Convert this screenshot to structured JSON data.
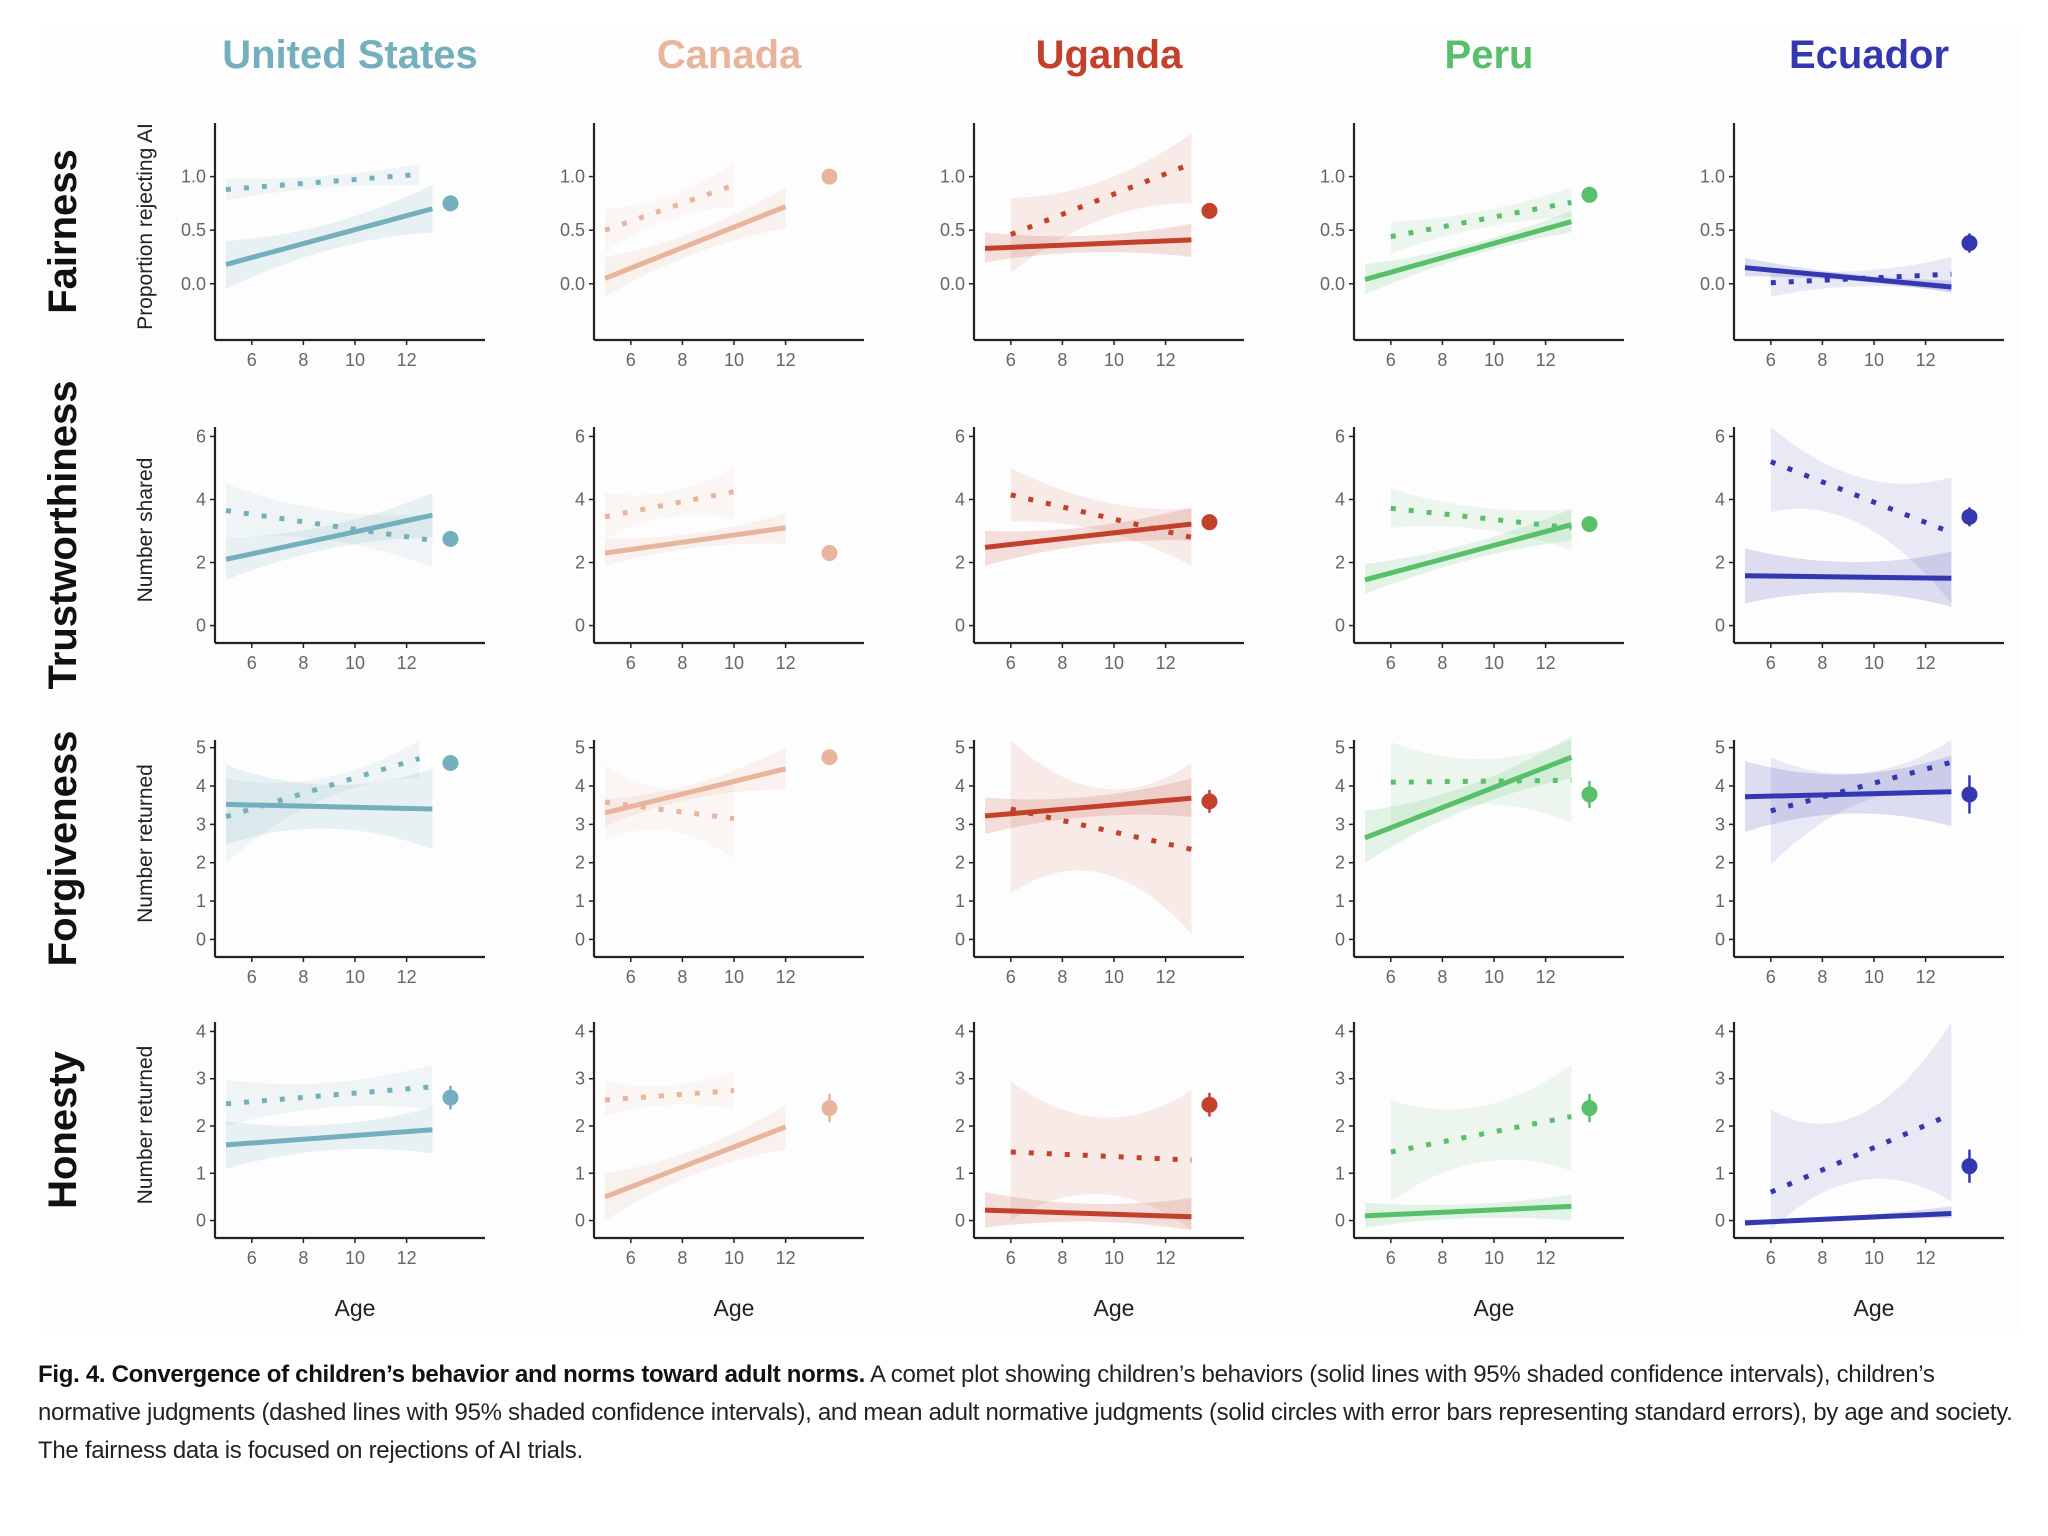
{
  "chart_data": {
    "type": "line",
    "title": "Fig. 4. Convergence of children's behavior and norms toward adult norms.",
    "xlabel": "Age",
    "x_ticks": [
      6,
      8,
      10,
      12
    ],
    "columns": [
      {
        "name": "United States",
        "color": "#74afbd"
      },
      {
        "name": "Canada",
        "color": "#e8b49b"
      },
      {
        "name": "Uganda",
        "color": "#c3402a"
      },
      {
        "name": "Peru",
        "color": "#58bf6a"
      },
      {
        "name": "Ecuador",
        "color": "#3338b0"
      }
    ],
    "rows": [
      {
        "name": "Fairness",
        "ylabel": "Proportion rejecting AI",
        "ylim": [
          -0.45,
          1.5
        ],
        "y_ticks": [
          0.0,
          0.5,
          1.0
        ],
        "y_tick_labels": [
          "0.0",
          "0.5",
          "1.0"
        ],
        "panels": [
          {
            "behavior": {
              "x": [
                5,
                13
              ],
              "y": [
                0.18,
                0.7
              ],
              "ci_lo": [
                -0.05,
                0.48
              ],
              "ci_hi": [
                0.4,
                0.92
              ]
            },
            "norm": {
              "x": [
                5,
                12.5
              ],
              "y": [
                0.88,
                1.02
              ],
              "ci_lo": [
                0.78,
                0.92
              ],
              "ci_hi": [
                0.98,
                1.12
              ]
            },
            "adult": {
              "mean": 0.75,
              "se": 0.05
            }
          },
          {
            "behavior": {
              "x": [
                5,
                12
              ],
              "y": [
                0.05,
                0.72
              ],
              "ci_lo": [
                -0.12,
                0.52
              ],
              "ci_hi": [
                0.25,
                0.9
              ]
            },
            "norm": {
              "x": [
                5,
                10
              ],
              "y": [
                0.5,
                0.92
              ],
              "ci_lo": [
                0.3,
                0.72
              ],
              "ci_hi": [
                0.7,
                1.12
              ]
            },
            "adult": {
              "mean": 1.0,
              "se": 0.0
            }
          },
          {
            "behavior": {
              "x": [
                5,
                13
              ],
              "y": [
                0.33,
                0.41
              ],
              "ci_lo": [
                0.2,
                0.25
              ],
              "ci_hi": [
                0.48,
                0.56
              ]
            },
            "norm": {
              "x": [
                6,
                13
              ],
              "y": [
                0.46,
                1.12
              ],
              "ci_lo": [
                0.1,
                0.75
              ],
              "ci_hi": [
                0.8,
                1.4
              ]
            },
            "adult": {
              "mean": 0.68,
              "se": 0.06
            }
          },
          {
            "behavior": {
              "x": [
                5,
                13
              ],
              "y": [
                0.04,
                0.58
              ],
              "ci_lo": [
                -0.1,
                0.48
              ],
              "ci_hi": [
                0.18,
                0.68
              ]
            },
            "norm": {
              "x": [
                6,
                13
              ],
              "y": [
                0.44,
                0.76
              ],
              "ci_lo": [
                0.28,
                0.62
              ],
              "ci_hi": [
                0.58,
                0.9
              ]
            },
            "adult": {
              "mean": 0.83,
              "se": 0.05
            }
          },
          {
            "behavior": {
              "x": [
                5,
                13
              ],
              "y": [
                0.15,
                -0.03
              ],
              "ci_lo": [
                0.07,
                -0.08
              ],
              "ci_hi": [
                0.24,
                0.03
              ]
            },
            "norm": {
              "x": [
                6,
                13
              ],
              "y": [
                0.01,
                0.09
              ],
              "ci_lo": [
                -0.12,
                -0.08
              ],
              "ci_hi": [
                0.14,
                0.25
              ]
            },
            "adult": {
              "mean": 0.38,
              "se": 0.09
            }
          }
        ]
      },
      {
        "name": "Trustworthiness",
        "ylabel": "Number shared",
        "ylim": [
          -0.3,
          6.3
        ],
        "y_ticks": [
          0,
          2,
          4,
          6
        ],
        "y_tick_labels": [
          "0",
          "2",
          "4",
          "6"
        ],
        "panels": [
          {
            "behavior": {
              "x": [
                5,
                13
              ],
              "y": [
                2.1,
                3.5
              ],
              "ci_lo": [
                1.45,
                2.8
              ],
              "ci_hi": [
                2.8,
                4.2
              ]
            },
            "norm": {
              "x": [
                5,
                13
              ],
              "y": [
                3.65,
                2.7
              ],
              "ci_lo": [
                2.8,
                1.85
              ],
              "ci_hi": [
                4.5,
                3.55
              ]
            },
            "adult": {
              "mean": 2.75,
              "se": 0.08
            }
          },
          {
            "behavior": {
              "x": [
                5,
                12
              ],
              "y": [
                2.3,
                3.1
              ],
              "ci_lo": [
                1.9,
                2.6
              ],
              "ci_hi": [
                2.75,
                3.55
              ]
            },
            "norm": {
              "x": [
                5,
                10
              ],
              "y": [
                3.45,
                4.25
              ],
              "ci_lo": [
                2.75,
                3.4
              ],
              "ci_hi": [
                4.2,
                5.0
              ]
            },
            "adult": {
              "mean": 2.3,
              "se": 0.08
            }
          },
          {
            "behavior": {
              "x": [
                5,
                13
              ],
              "y": [
                2.48,
                3.22
              ],
              "ci_lo": [
                1.9,
                2.7
              ],
              "ci_hi": [
                3.0,
                3.75
              ]
            },
            "norm": {
              "x": [
                6,
                13
              ],
              "y": [
                4.15,
                2.8
              ],
              "ci_lo": [
                3.3,
                1.9
              ],
              "ci_hi": [
                5.0,
                3.7
              ]
            },
            "adult": {
              "mean": 3.28,
              "se": 0.1
            }
          },
          {
            "behavior": {
              "x": [
                5,
                13
              ],
              "y": [
                1.45,
                3.2
              ],
              "ci_lo": [
                1.0,
                2.7
              ],
              "ci_hi": [
                1.95,
                3.7
              ]
            },
            "norm": {
              "x": [
                6,
                13
              ],
              "y": [
                3.72,
                3.1
              ],
              "ci_lo": [
                3.1,
                2.4
              ],
              "ci_hi": [
                4.35,
                3.7
              ]
            },
            "adult": {
              "mean": 3.22,
              "se": 0.08
            }
          },
          {
            "behavior": {
              "x": [
                5,
                13
              ],
              "y": [
                1.58,
                1.5
              ],
              "ci_lo": [
                0.7,
                0.6
              ],
              "ci_hi": [
                2.45,
                2.35
              ]
            },
            "norm": {
              "x": [
                6,
                13
              ],
              "y": [
                5.2,
                2.95
              ],
              "ci_lo": [
                3.6,
                0.7
              ],
              "ci_hi": [
                6.3,
                4.7
              ]
            },
            "adult": {
              "mean": 3.45,
              "se": 0.3
            }
          }
        ]
      },
      {
        "name": "Forgiveness",
        "ylabel": "Number returned",
        "ylim": [
          -0.25,
          5.2
        ],
        "y_ticks": [
          0,
          1,
          2,
          3,
          4,
          5
        ],
        "y_tick_labels": [
          "0",
          "1",
          "2",
          "3",
          "4",
          "5"
        ],
        "panels": [
          {
            "behavior": {
              "x": [
                5,
                13
              ],
              "y": [
                3.52,
                3.4
              ],
              "ci_lo": [
                2.48,
                2.35
              ],
              "ci_hi": [
                4.55,
                4.45
              ]
            },
            "norm": {
              "x": [
                5,
                12.5
              ],
              "y": [
                3.2,
                4.72
              ],
              "ci_lo": [
                2.0,
                4.2
              ],
              "ci_hi": [
                4.2,
                5.2
              ]
            },
            "adult": {
              "mean": 4.6,
              "se": 0.05
            }
          },
          {
            "behavior": {
              "x": [
                5,
                12
              ],
              "y": [
                3.3,
                4.45
              ],
              "ci_lo": [
                2.95,
                3.9
              ],
              "ci_hi": [
                3.65,
                5.0
              ]
            },
            "norm": {
              "x": [
                5,
                10
              ],
              "y": [
                3.58,
                3.15
              ],
              "ci_lo": [
                2.6,
                2.1
              ],
              "ci_hi": [
                4.55,
                4.2
              ]
            },
            "adult": {
              "mean": 4.75,
              "se": 0.05
            }
          },
          {
            "behavior": {
              "x": [
                5,
                13
              ],
              "y": [
                3.22,
                3.68
              ],
              "ci_lo": [
                2.75,
                3.2
              ],
              "ci_hi": [
                3.7,
                4.2
              ]
            },
            "norm": {
              "x": [
                6,
                13
              ],
              "y": [
                3.4,
                2.35
              ],
              "ci_lo": [
                1.2,
                0.15
              ],
              "ci_hi": [
                5.2,
                4.6
              ]
            },
            "adult": {
              "mean": 3.6,
              "se": 0.3
            }
          },
          {
            "behavior": {
              "x": [
                5,
                13
              ],
              "y": [
                2.65,
                4.75
              ],
              "ci_lo": [
                2.0,
                4.2
              ],
              "ci_hi": [
                3.35,
                5.3
              ]
            },
            "norm": {
              "x": [
                6,
                13
              ],
              "y": [
                4.1,
                4.15
              ],
              "ci_lo": [
                3.0,
                3.05
              ],
              "ci_hi": [
                5.15,
                5.2
              ]
            },
            "adult": {
              "mean": 3.78,
              "se": 0.35
            }
          },
          {
            "behavior": {
              "x": [
                5,
                13
              ],
              "y": [
                3.72,
                3.85
              ],
              "ci_lo": [
                2.8,
                2.95
              ],
              "ci_hi": [
                4.65,
                4.8
              ]
            },
            "norm": {
              "x": [
                6,
                13
              ],
              "y": [
                3.35,
                4.62
              ],
              "ci_lo": [
                1.95,
                3.8
              ],
              "ci_hi": [
                4.75,
                5.2
              ]
            },
            "adult": {
              "mean": 3.78,
              "se": 0.5
            }
          }
        ]
      },
      {
        "name": "Honesty",
        "ylabel": "Number returned",
        "ylim": [
          -0.2,
          4.2
        ],
        "y_ticks": [
          0,
          1,
          2,
          3,
          4
        ],
        "y_tick_labels": [
          "0",
          "1",
          "2",
          "3",
          "4"
        ],
        "panels": [
          {
            "behavior": {
              "x": [
                5,
                13
              ],
              "y": [
                1.6,
                1.92
              ],
              "ci_lo": [
                1.1,
                1.42
              ],
              "ci_hi": [
                2.1,
                2.4
              ]
            },
            "norm": {
              "x": [
                5,
                13
              ],
              "y": [
                2.47,
                2.83
              ],
              "ci_lo": [
                2.0,
                2.35
              ],
              "ci_hi": [
                2.98,
                3.3
              ]
            },
            "adult": {
              "mean": 2.6,
              "se": 0.25
            }
          },
          {
            "behavior": {
              "x": [
                5,
                12
              ],
              "y": [
                0.5,
                1.98
              ],
              "ci_lo": [
                0.0,
                1.5
              ],
              "ci_hi": [
                1.0,
                2.45
              ]
            },
            "norm": {
              "x": [
                5,
                10
              ],
              "y": [
                2.55,
                2.75
              ],
              "ci_lo": [
                2.2,
                2.35
              ],
              "ci_hi": [
                2.95,
                3.15
              ]
            },
            "adult": {
              "mean": 2.38,
              "se": 0.3
            }
          },
          {
            "behavior": {
              "x": [
                5,
                13
              ],
              "y": [
                0.22,
                0.08
              ],
              "ci_lo": [
                -0.15,
                -0.2
              ],
              "ci_hi": [
                0.6,
                0.48
              ]
            },
            "norm": {
              "x": [
                6,
                13
              ],
              "y": [
                1.45,
                1.28
              ],
              "ci_lo": [
                0.0,
                -0.2
              ],
              "ci_hi": [
                2.95,
                2.75
              ]
            },
            "adult": {
              "mean": 2.45,
              "se": 0.25
            }
          },
          {
            "behavior": {
              "x": [
                5,
                13
              ],
              "y": [
                0.1,
                0.3
              ],
              "ci_lo": [
                -0.15,
                0.0
              ],
              "ci_hi": [
                0.38,
                0.55
              ]
            },
            "norm": {
              "x": [
                6,
                13
              ],
              "y": [
                1.45,
                2.2
              ],
              "ci_lo": [
                0.4,
                1.05
              ],
              "ci_hi": [
                2.55,
                3.3
              ]
            },
            "adult": {
              "mean": 2.38,
              "se": 0.3
            }
          },
          {
            "behavior": {
              "x": [
                5,
                13
              ],
              "y": [
                -0.05,
                0.15
              ],
              "ci_lo": [
                -0.12,
                0.05
              ],
              "ci_hi": [
                0.02,
                0.3
              ]
            },
            "norm": {
              "x": [
                6,
                13
              ],
              "y": [
                0.6,
                2.25
              ],
              "ci_lo": [
                -0.2,
                0.4
              ],
              "ci_hi": [
                2.35,
                4.2
              ]
            },
            "adult": {
              "mean": 1.15,
              "se": 0.35
            }
          }
        ]
      }
    ]
  },
  "caption": {
    "bold": "Fig. 4. Convergence of children’s behavior and norms toward adult norms.",
    "text": " A comet plot showing children’s behaviors (solid lines with 95% shaded confidence intervals), children’s normative judgments (dashed lines with 95% shaded confidence intervals), and mean adult normative judgments (solid circles with error bars representing standard errors), by age and society. The fairness data is focused on rejections of AI trials."
  }
}
